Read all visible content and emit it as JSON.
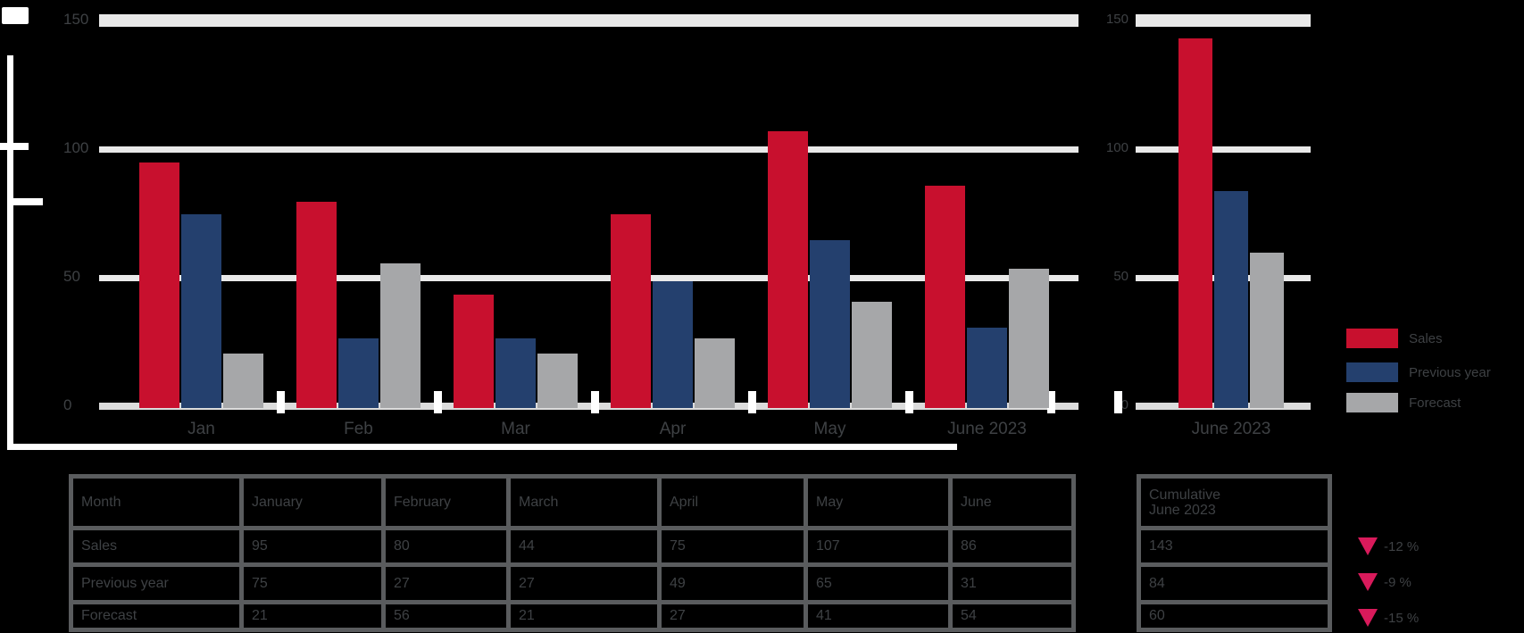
{
  "colors": {
    "background": "#000000",
    "series_red": "#C8102E",
    "series_navy": "#24406E",
    "series_gray": "#A6A7A9",
    "gridline": "#E9E9E9",
    "baseline": "#DCDCDC",
    "table_border": "#5A5C5E",
    "text_dim": "#3E4144",
    "kpi_triangle": "#D91A5B",
    "axis_decor": "#FFFFFF"
  },
  "chart_data": [
    {
      "type": "bar",
      "title": "",
      "categories": [
        "Jan",
        "Feb",
        "Mar",
        "Apr",
        "May",
        "June 2023"
      ],
      "series": [
        {
          "name": "Sales",
          "color": "#C8102E",
          "values": [
            95,
            80,
            44,
            75,
            107,
            86
          ]
        },
        {
          "name": "Previous year",
          "color": "#24406E",
          "values": [
            75,
            27,
            27,
            49,
            65,
            31
          ]
        },
        {
          "name": "Forecast",
          "color": "#A6A7A9",
          "values": [
            21,
            56,
            21,
            27,
            41,
            54
          ]
        }
      ],
      "ylim": [
        0,
        150
      ],
      "yticks": [
        "150",
        "100",
        "50",
        "0"
      ],
      "grid": true,
      "legend_position": "right"
    },
    {
      "type": "bar",
      "title": "",
      "categories": [
        "June 2023"
      ],
      "series": [
        {
          "name": "Sales",
          "color": "#C8102E",
          "values": [
            143
          ]
        },
        {
          "name": "Previous year",
          "color": "#24406E",
          "values": [
            84
          ]
        },
        {
          "name": "Forecast",
          "color": "#A6A7A9",
          "values": [
            60
          ]
        }
      ],
      "ylim": [
        0,
        150
      ],
      "yticks": [
        "150",
        "100",
        "50",
        "0"
      ],
      "grid": true
    }
  ],
  "legend": {
    "items": [
      {
        "label": "Sales",
        "color": "#C8102E"
      },
      {
        "label": "Previous year",
        "color": "#24406E"
      },
      {
        "label": "Forecast",
        "color": "#A6A7A9"
      }
    ]
  },
  "monthly_table": {
    "columns": [
      "Month",
      "January",
      "February",
      "March",
      "April",
      "May",
      "June"
    ],
    "rows": [
      {
        "label": "Sales",
        "values": [
          "95",
          "80",
          "44",
          "75",
          "107",
          "86"
        ]
      },
      {
        "label": "Previous year",
        "values": [
          "75",
          "27",
          "27",
          "49",
          "65",
          "31"
        ]
      },
      {
        "label": "Forecast",
        "values": [
          "21",
          "56",
          "21",
          "27",
          "41",
          "54"
        ]
      }
    ]
  },
  "cumulative_table": {
    "header_line1": "Cumulative",
    "header_line2": "June 2023",
    "rows": [
      "143",
      "84",
      "60"
    ]
  },
  "kpis": [
    {
      "delta": "-12 %"
    },
    {
      "delta": "-9 %"
    },
    {
      "delta": "-15 %"
    }
  ]
}
